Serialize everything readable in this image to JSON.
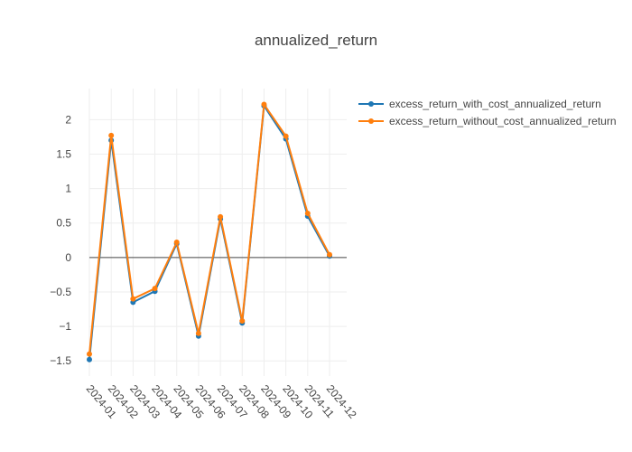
{
  "chart_data": {
    "type": "line",
    "title": "annualized_return",
    "xlabel": "",
    "ylabel": "",
    "categories": [
      "2024-01",
      "2024-02",
      "2024-03",
      "2024-04",
      "2024-05",
      "2024-06",
      "2024-07",
      "2024-08",
      "2024-09",
      "2024-10",
      "2024-11",
      "2024-12"
    ],
    "y_ticks": [
      -1.5,
      -1,
      -0.5,
      0,
      0.5,
      1,
      1.5,
      2
    ],
    "y_tick_labels": [
      "−1.5",
      "−1",
      "−0.5",
      "0",
      "0.5",
      "1",
      "1.5",
      "2"
    ],
    "ylim": [
      -1.72,
      2.45
    ],
    "grid": true,
    "legend_position": "top-right",
    "series": [
      {
        "name": "excess_return_with_cost_annualized_return",
        "color": "#1f77b4",
        "values": [
          -1.48,
          1.7,
          -0.65,
          -0.49,
          0.2,
          -1.14,
          0.56,
          -0.95,
          2.2,
          1.72,
          0.6,
          0.02
        ]
      },
      {
        "name": "excess_return_without_cost_annualized_return",
        "color": "#ff7f0e",
        "values": [
          -1.4,
          1.77,
          -0.6,
          -0.45,
          0.22,
          -1.1,
          0.59,
          -0.92,
          2.22,
          1.76,
          0.64,
          0.04
        ]
      }
    ]
  }
}
